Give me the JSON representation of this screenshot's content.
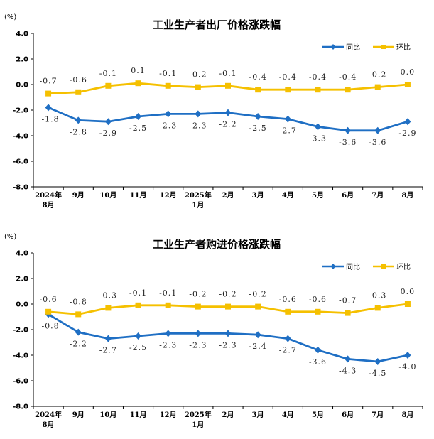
{
  "colors": {
    "yoy": "#1f6fc4",
    "mom": "#f5c000",
    "axis": "#000000"
  },
  "chart_data": [
    {
      "type": "line",
      "title": "工业生产者出厂价格涨跌幅",
      "ylabel": "(%)",
      "ylim": [
        -8.0,
        4.0
      ],
      "yticks": [
        "4.0",
        "2.0",
        "0.0",
        "-2.0",
        "-4.0",
        "-6.0",
        "-8.0"
      ],
      "categories": [
        [
          "2024年",
          "8月"
        ],
        [
          "9月"
        ],
        [
          "10月"
        ],
        [
          "11月"
        ],
        [
          "12月"
        ],
        [
          "2025年",
          "1月"
        ],
        [
          "2月"
        ],
        [
          "3月"
        ],
        [
          "4月"
        ],
        [
          "5月"
        ],
        [
          "6月"
        ],
        [
          "7月"
        ],
        [
          "8月"
        ]
      ],
      "legend_position": "top-right",
      "series": [
        {
          "name": "同比",
          "key": "yoy",
          "values": [
            -1.8,
            -2.8,
            -2.9,
            -2.5,
            -2.3,
            -2.3,
            -2.2,
            -2.5,
            -2.7,
            -3.3,
            -3.6,
            -3.6,
            -2.9
          ],
          "labels": [
            "-1.8",
            "-2.8",
            "-2.9",
            "-2.5",
            "-2.3",
            "-2.3",
            "-2.2",
            "-2.5",
            "-2.7",
            "-3.3",
            "-3.6",
            "-3.6",
            "-2.9"
          ]
        },
        {
          "name": "环比",
          "key": "mom",
          "values": [
            -0.7,
            -0.6,
            -0.1,
            0.1,
            -0.1,
            -0.2,
            -0.1,
            -0.4,
            -0.4,
            -0.4,
            -0.4,
            -0.2,
            0.0
          ],
          "labels": [
            "-0.7",
            "-0.6",
            "-0.1",
            "0.1",
            "-0.1",
            "-0.2",
            "-0.1",
            "-0.4",
            "-0.4",
            "-0.4",
            "-0.4",
            "-0.2",
            "0.0"
          ]
        }
      ]
    },
    {
      "type": "line",
      "title": "工业生产者购进价格涨跌幅",
      "ylabel": "(%)",
      "ylim": [
        -8.0,
        4.0
      ],
      "yticks": [
        "4.0",
        "2.0",
        "0.0",
        "-2.0",
        "-4.0",
        "-6.0",
        "-8.0"
      ],
      "categories": [
        [
          "2024年",
          "8月"
        ],
        [
          "9月"
        ],
        [
          "10月"
        ],
        [
          "11月"
        ],
        [
          "12月"
        ],
        [
          "2025年",
          "1月"
        ],
        [
          "2月"
        ],
        [
          "3月"
        ],
        [
          "4月"
        ],
        [
          "5月"
        ],
        [
          "6月"
        ],
        [
          "7月"
        ],
        [
          "8月"
        ]
      ],
      "legend_position": "top-right",
      "series": [
        {
          "name": "同比",
          "key": "yoy",
          "values": [
            -0.8,
            -2.2,
            -2.7,
            -2.5,
            -2.3,
            -2.3,
            -2.3,
            -2.4,
            -2.7,
            -3.6,
            -4.3,
            -4.5,
            -4.0
          ],
          "labels": [
            "-0.8",
            "-2.2",
            "-2.7",
            "-2.5",
            "-2.3",
            "-2.3",
            "-2.3",
            "-2.4",
            "-2.7",
            "-3.6",
            "-4.3",
            "-4.5",
            "-4.0"
          ]
        },
        {
          "name": "环比",
          "key": "mom",
          "values": [
            -0.6,
            -0.8,
            -0.3,
            -0.1,
            -0.1,
            -0.2,
            -0.2,
            -0.2,
            -0.6,
            -0.6,
            -0.7,
            -0.3,
            0.0
          ],
          "labels": [
            "-0.6",
            "-0.8",
            "-0.3",
            "-0.1",
            "-0.1",
            "-0.2",
            "-0.2",
            "-0.2",
            "-0.6",
            "-0.6",
            "-0.7",
            "-0.3",
            "0.0"
          ]
        }
      ]
    }
  ]
}
